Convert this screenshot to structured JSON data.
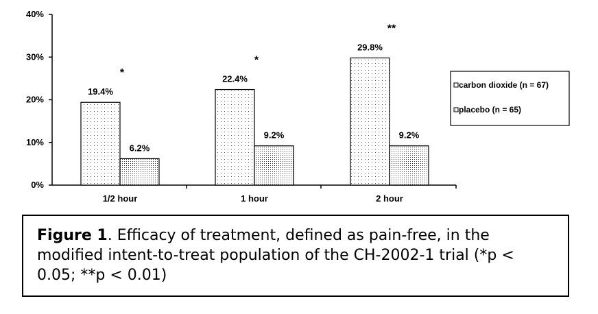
{
  "chart_data": {
    "type": "bar",
    "categories": [
      "1/2 hour",
      "1 hour",
      "2 hour"
    ],
    "series": [
      {
        "name": "carbon dioxide (n = 67)",
        "values": [
          19.4,
          22.4,
          29.8
        ],
        "pattern": "sparse-dots"
      },
      {
        "name": "placebo (n = 65)",
        "values": [
          6.2,
          9.2,
          9.2
        ],
        "pattern": "dense-dots"
      }
    ],
    "data_labels": [
      [
        "19.4%",
        "22.4%",
        "29.8%"
      ],
      [
        "6.2%",
        "9.2%",
        "9.2%"
      ]
    ],
    "significance": [
      "*",
      "*",
      "**"
    ],
    "yticks": [
      "0%",
      "10%",
      "20%",
      "30%",
      "40%"
    ],
    "ylim": [
      0,
      40
    ],
    "legend_position": "right",
    "grid": false
  },
  "caption": {
    "bold": "Figure 1",
    "text": ". Efficacy of treatment, defined as pain-free, in the modified intent-to-treat population of the CH-2002-1 trial (*p < 0.05; **p < 0.01)"
  }
}
